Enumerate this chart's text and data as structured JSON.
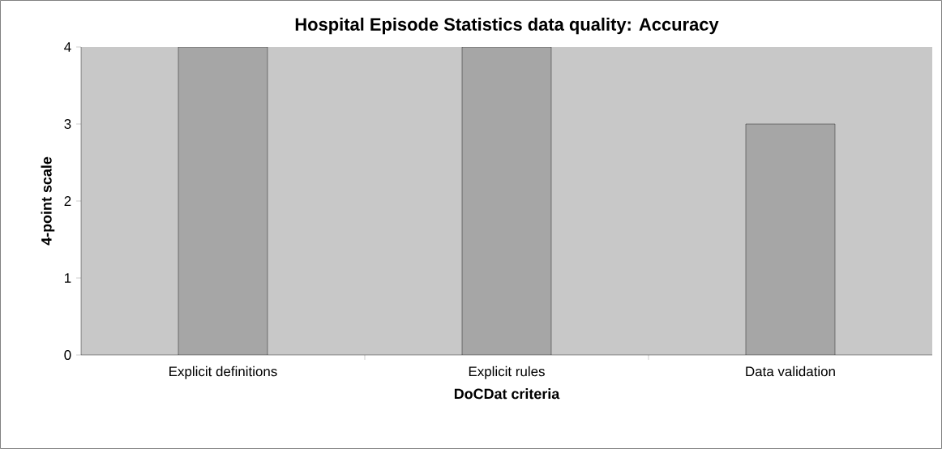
{
  "chart_data": {
    "type": "bar",
    "title": "Hospital Episode Statistics data quality: Accuracy",
    "xlabel": "DoCDat criteria",
    "ylabel": "4-point scale",
    "categories": [
      "Explicit definitions",
      "Explicit rules",
      "Data validation"
    ],
    "values": [
      4,
      4,
      3
    ],
    "color": "#a6a6a6",
    "ylim": [
      0,
      4
    ],
    "yticks": [
      0,
      1,
      2,
      3,
      4
    ],
    "grid": false
  }
}
